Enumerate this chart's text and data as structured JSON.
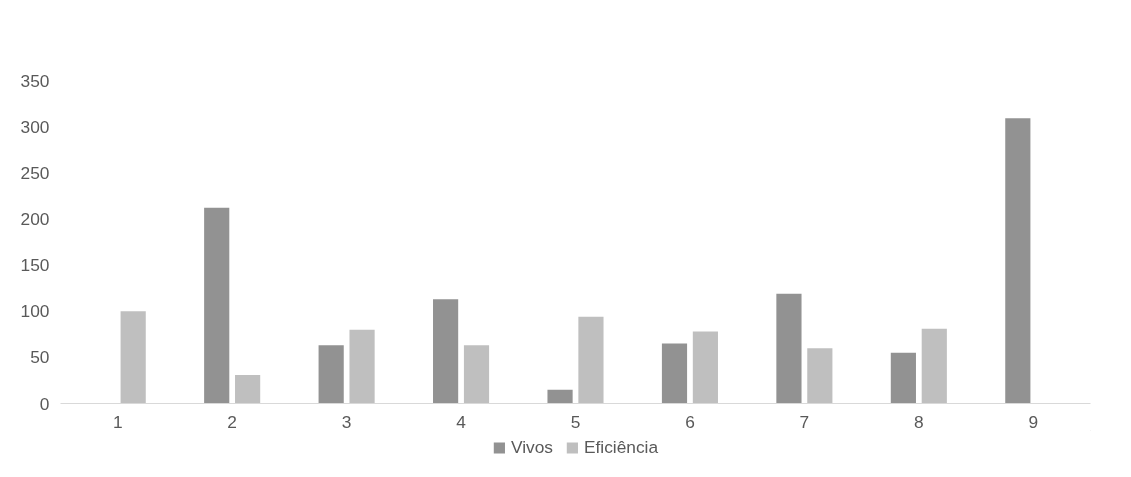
{
  "chart_data": {
    "type": "bar",
    "categories": [
      "1",
      "2",
      "3",
      "4",
      "5",
      "6",
      "7",
      "8",
      "9"
    ],
    "series": [
      {
        "name": "Vivos",
        "color": "#929292",
        "values": [
          null,
          212,
          63,
          113,
          15,
          65,
          119,
          55,
          309
        ]
      },
      {
        "name": "Eficiência",
        "color": "#bfbfbf",
        "values": [
          100,
          31,
          80,
          63,
          94,
          78,
          60,
          81,
          null
        ]
      }
    ],
    "ylim": [
      0,
      350
    ],
    "yticks": [
      0,
      50,
      100,
      150,
      200,
      250,
      300,
      350
    ],
    "grid": false,
    "legend": "bottom"
  }
}
